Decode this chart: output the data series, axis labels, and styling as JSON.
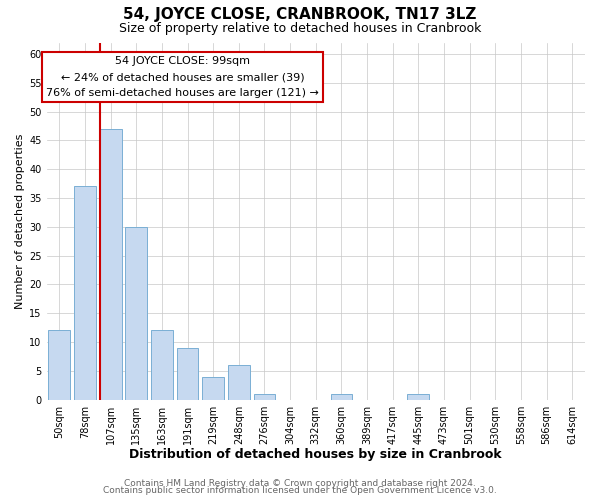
{
  "title": "54, JOYCE CLOSE, CRANBROOK, TN17 3LZ",
  "subtitle": "Size of property relative to detached houses in Cranbrook",
  "xlabel": "Distribution of detached houses by size in Cranbrook",
  "ylabel": "Number of detached properties",
  "bar_labels": [
    "50sqm",
    "78sqm",
    "107sqm",
    "135sqm",
    "163sqm",
    "191sqm",
    "219sqm",
    "248sqm",
    "276sqm",
    "304sqm",
    "332sqm",
    "360sqm",
    "389sqm",
    "417sqm",
    "445sqm",
    "473sqm",
    "501sqm",
    "530sqm",
    "558sqm",
    "586sqm",
    "614sqm"
  ],
  "bar_values": [
    12,
    37,
    47,
    30,
    12,
    9,
    4,
    6,
    1,
    0,
    0,
    1,
    0,
    0,
    1,
    0,
    0,
    0,
    0,
    0,
    0
  ],
  "bar_color": "#c6d9f0",
  "bar_edge_color": "#7aafd4",
  "ylim": [
    0,
    62
  ],
  "yticks": [
    0,
    5,
    10,
    15,
    20,
    25,
    30,
    35,
    40,
    45,
    50,
    55,
    60
  ],
  "property_line_color": "#cc0000",
  "property_line_bar_index": 2,
  "annotation_line1": "54 JOYCE CLOSE: 99sqm",
  "annotation_line2": "← 24% of detached houses are smaller (39)",
  "annotation_line3": "76% of semi-detached houses are larger (121) →",
  "footer_line1": "Contains HM Land Registry data © Crown copyright and database right 2024.",
  "footer_line2": "Contains public sector information licensed under the Open Government Licence v3.0.",
  "background_color": "#ffffff",
  "grid_color": "#c8c8c8",
  "title_fontsize": 11,
  "subtitle_fontsize": 9,
  "xlabel_fontsize": 9,
  "ylabel_fontsize": 8,
  "tick_fontsize": 7,
  "annotation_fontsize": 8,
  "footer_fontsize": 6.5
}
